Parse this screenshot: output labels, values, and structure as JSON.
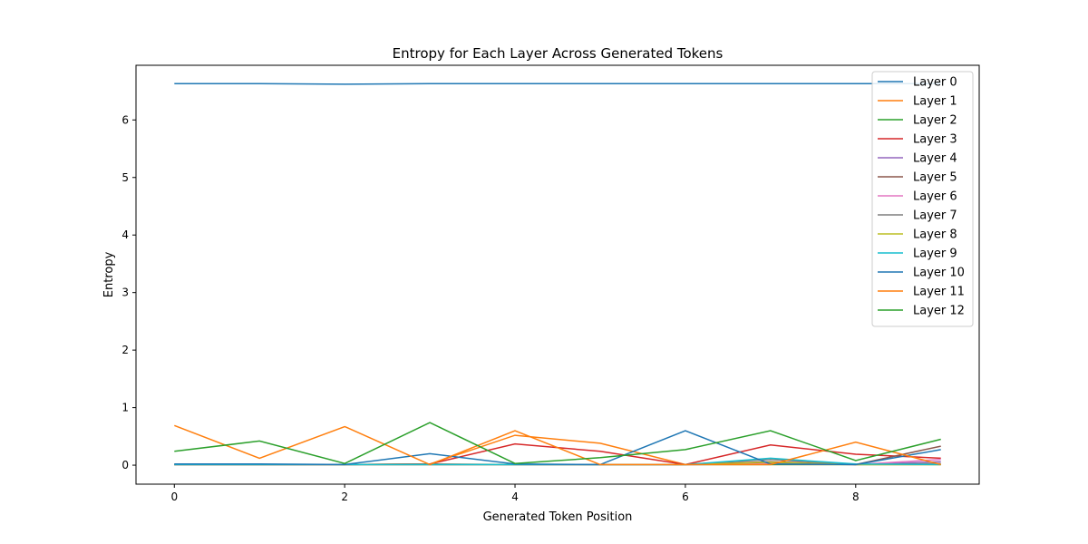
{
  "chart_data": {
    "type": "line",
    "title": "Entropy for Each Layer Across Generated Tokens",
    "xlabel": "Generated Token Position",
    "ylabel": "Entropy",
    "xlim": [
      -0.45,
      9.45
    ],
    "ylim": [
      -0.33,
      6.95
    ],
    "xticks": [
      0,
      2,
      4,
      6,
      8
    ],
    "yticks": [
      0,
      1,
      2,
      3,
      4,
      5,
      6
    ],
    "grid": false,
    "legend_position": "top-right",
    "x": [
      0,
      1,
      2,
      3,
      4,
      5,
      6,
      7,
      8,
      9
    ],
    "series": [
      {
        "name": "Layer 0",
        "color": "#1f77b4",
        "values": [
          6.63,
          6.63,
          6.62,
          6.63,
          6.63,
          6.63,
          6.63,
          6.63,
          6.63,
          6.63
        ]
      },
      {
        "name": "Layer 1",
        "color": "#ff7f0e",
        "values": [
          0.01,
          0.01,
          0.01,
          0.02,
          0.52,
          0.38,
          0.01,
          0.01,
          0.01,
          0.01
        ]
      },
      {
        "name": "Layer 2",
        "color": "#2ca02c",
        "values": [
          0.01,
          0.01,
          0.01,
          0.01,
          0.01,
          0.01,
          0.01,
          0.01,
          0.01,
          0.01
        ]
      },
      {
        "name": "Layer 3",
        "color": "#d62728",
        "values": [
          0.01,
          0.01,
          0.01,
          0.02,
          0.37,
          0.24,
          0.01,
          0.35,
          0.19,
          0.12
        ]
      },
      {
        "name": "Layer 4",
        "color": "#9467bd",
        "values": [
          0.01,
          0.01,
          0.01,
          0.01,
          0.01,
          0.01,
          0.01,
          0.02,
          0.01,
          0.06
        ]
      },
      {
        "name": "Layer 5",
        "color": "#8c564b",
        "values": [
          0.01,
          0.01,
          0.01,
          0.02,
          0.01,
          0.01,
          0.01,
          0.06,
          0.01,
          0.33
        ]
      },
      {
        "name": "Layer 6",
        "color": "#e377c2",
        "values": [
          0.01,
          0.01,
          0.01,
          0.01,
          0.01,
          0.01,
          0.01,
          0.03,
          0.01,
          0.1
        ]
      },
      {
        "name": "Layer 7",
        "color": "#7f7f7f",
        "values": [
          0.01,
          0.01,
          0.01,
          0.01,
          0.01,
          0.01,
          0.01,
          0.1,
          0.01,
          0.03
        ]
      },
      {
        "name": "Layer 8",
        "color": "#bcbd22",
        "values": [
          0.01,
          0.01,
          0.01,
          0.01,
          0.01,
          0.01,
          0.01,
          0.05,
          0.01,
          0.01
        ]
      },
      {
        "name": "Layer 9",
        "color": "#17becf",
        "values": [
          0.01,
          0.01,
          0.01,
          0.01,
          0.01,
          0.01,
          0.01,
          0.12,
          0.02,
          0.01
        ]
      },
      {
        "name": "Layer 10",
        "color": "#1f77b4",
        "values": [
          0.02,
          0.02,
          0.01,
          0.2,
          0.02,
          0.01,
          0.6,
          0.02,
          0.01,
          0.27
        ]
      },
      {
        "name": "Layer 11",
        "color": "#ff7f0e",
        "values": [
          0.69,
          0.12,
          0.67,
          0.01,
          0.6,
          0.01,
          0.01,
          0.01,
          0.4,
          0.01
        ]
      },
      {
        "name": "Layer 12",
        "color": "#2ca02c",
        "values": [
          0.24,
          0.42,
          0.03,
          0.74,
          0.03,
          0.13,
          0.27,
          0.6,
          0.08,
          0.45
        ]
      }
    ]
  }
}
